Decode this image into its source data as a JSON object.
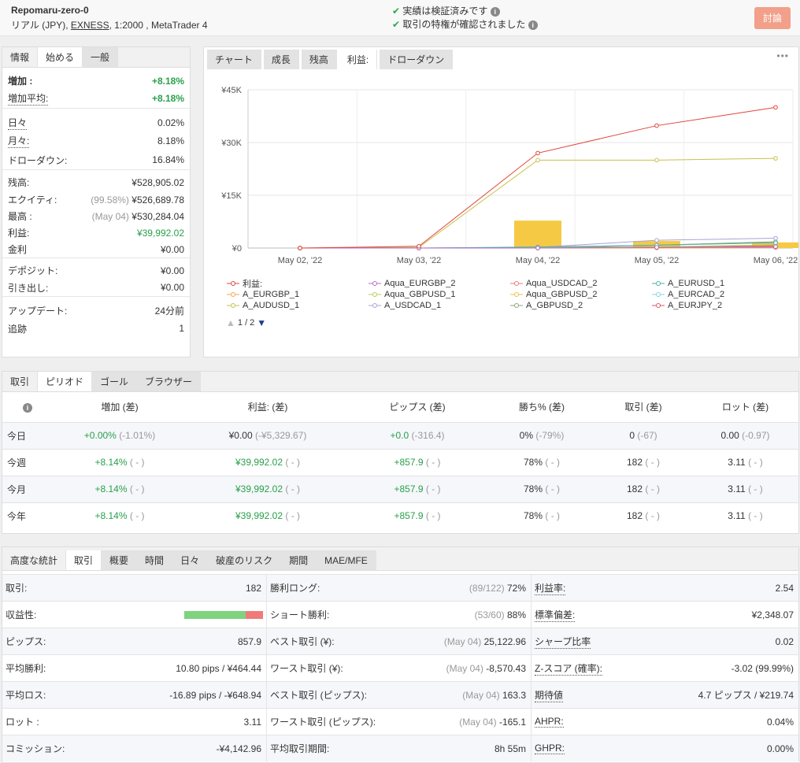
{
  "header": {
    "title": "Repomaru-zero-0",
    "subtitle_prefix": "リアル (JPY), ",
    "broker": "EXNESS",
    "subtitle_suffix": ", 1:2000 , MetaTrader 4",
    "verified_1": "実績は検証済みです",
    "verified_2": "取引の特権が確認されました",
    "discuss_button": "討論",
    "discuss_color": "#f2a08a"
  },
  "info": {
    "tabs": [
      "情報",
      "始める",
      "一般"
    ],
    "growth_label": "増加 :",
    "growth_value": "+8.18%",
    "avg_growth_label": "増加平均:",
    "avg_growth_value": "+8.18%",
    "daily_label": "日々",
    "daily_value": "0.02%",
    "monthly_label": "月々:",
    "monthly_value": "8.18%",
    "drawdown_label": "ドローダウン:",
    "drawdown_value": "16.84%",
    "balance_label": "残高:",
    "balance_value": "¥528,905.02",
    "equity_label": "エクイティ:",
    "equity_note": "(99.58%)",
    "equity_value": "¥526,689.78",
    "highest_label": "最高 :",
    "highest_note": "(May 04)",
    "highest_value": "¥530,284.04",
    "profit_label": "利益:",
    "profit_value": "¥39,992.02",
    "interest_label": "金利",
    "interest_value": "¥0.00",
    "deposit_label": "デポジット:",
    "deposit_value": "¥0.00",
    "withdraw_label": "引き出し:",
    "withdraw_value": "¥0.00",
    "updated_label": "アップデート:",
    "updated_value": "24分前",
    "tracking_label": "追跡",
    "tracking_value": "1"
  },
  "chart_tabs": [
    "チャート",
    "成長",
    "残高",
    "利益:",
    "ドローダウン"
  ],
  "chart_more": "•••",
  "chart_pager": "1 / 2",
  "chart_data": {
    "type": "line",
    "categories": [
      "May 02, '22",
      "May 03, '22",
      "May 04, '22",
      "May 05, '22",
      "May 06, '22"
    ],
    "y_ticks": [
      "¥45K",
      "¥30K",
      "¥15K",
      "¥0"
    ],
    "ylim": [
      0,
      45000
    ],
    "grid": true,
    "legend_position": "bottom",
    "bars": [
      0,
      0,
      7800,
      2000,
      1600
    ],
    "series": [
      {
        "name": "利益:",
        "color": "#e0443b",
        "values": [
          0,
          500,
          27000,
          34800,
          39992
        ]
      },
      {
        "name": "Aqua_EURGBP_2",
        "color": "#b06fc8",
        "values": [
          0,
          0,
          0,
          200,
          400
        ]
      },
      {
        "name": "Aqua_USDCAD_2",
        "color": "#e87a7a",
        "values": [
          0,
          0,
          0,
          100,
          200
        ]
      },
      {
        "name": "A_EURUSD_1",
        "color": "#4bb3a6",
        "values": [
          0,
          0,
          300,
          800,
          1500
        ]
      },
      {
        "name": "A_EURGBP_1",
        "color": "#f3a74e",
        "values": [
          0,
          0,
          0,
          0,
          100
        ]
      },
      {
        "name": "Aqua_GBPUSD_1",
        "color": "#b5cf58",
        "values": [
          0,
          0,
          100,
          300,
          900
        ]
      },
      {
        "name": "Aqua_GBPUSD_2",
        "color": "#e8c24a",
        "values": [
          0,
          0,
          0,
          100,
          300
        ]
      },
      {
        "name": "A_EURCAD_2",
        "color": "#8ad0e8",
        "values": [
          0,
          0,
          0,
          100,
          200
        ]
      },
      {
        "name": "A_AUDUSD_1",
        "color": "#c9c04a",
        "values": [
          0,
          200,
          25000,
          25000,
          25500
        ]
      },
      {
        "name": "A_USDCAD_1",
        "color": "#a7a3d6",
        "values": [
          0,
          0,
          200,
          2200,
          2800
        ]
      },
      {
        "name": "A_GBPUSD_2",
        "color": "#8ea37a",
        "values": [
          0,
          0,
          0,
          800,
          1800
        ]
      },
      {
        "name": "A_EURJPY_2",
        "color": "#d8556e",
        "values": [
          0,
          0,
          0,
          300,
          700
        ]
      }
    ]
  },
  "period": {
    "tabs": [
      "取引",
      "ピリオド",
      "ゴール",
      "ブラウザー"
    ],
    "headers": [
      "増加 (差)",
      "利益: (差)",
      "ピップス (差)",
      "勝ち% (差)",
      "取引 (差)",
      "ロット (差)"
    ],
    "rows": [
      {
        "label": "今日",
        "c": [
          [
            "+0.00%",
            "(-1.01%)"
          ],
          [
            "¥0.00",
            "(-¥5,329.67)"
          ],
          [
            "+0.0",
            "(-316.4)"
          ],
          [
            "0%",
            "(-79%)"
          ],
          [
            "0",
            "(-67)"
          ],
          [
            "0.00",
            "(-0.97)"
          ]
        ]
      },
      {
        "label": "今週",
        "c": [
          [
            "+8.14%",
            "( - )"
          ],
          [
            "¥39,992.02",
            "( - )"
          ],
          [
            "+857.9",
            "( - )"
          ],
          [
            "78%",
            "( - )"
          ],
          [
            "182",
            "( - )"
          ],
          [
            "3.11",
            "( - )"
          ]
        ]
      },
      {
        "label": "今月",
        "c": [
          [
            "+8.14%",
            "( - )"
          ],
          [
            "¥39,992.02",
            "( - )"
          ],
          [
            "+857.9",
            "( - )"
          ],
          [
            "78%",
            "( - )"
          ],
          [
            "182",
            "( - )"
          ],
          [
            "3.11",
            "( - )"
          ]
        ]
      },
      {
        "label": "今年",
        "c": [
          [
            "+8.14%",
            "( - )"
          ],
          [
            "¥39,992.02",
            "( - )"
          ],
          [
            "+857.9",
            "( - )"
          ],
          [
            "78%",
            "( - )"
          ],
          [
            "182",
            "( - )"
          ],
          [
            "3.11",
            "( - )"
          ]
        ]
      }
    ]
  },
  "stats": {
    "tabs": [
      "高度な統計",
      "取引",
      "概要",
      "時間",
      "日々",
      "破産のリスク",
      "期間",
      "MAE/MFE"
    ],
    "profitability_win_fraction": 0.78,
    "col1": [
      {
        "label": "取引:",
        "value": "182"
      },
      {
        "label": "収益性:",
        "value": ""
      },
      {
        "label": "ピップス:",
        "value": "857.9"
      },
      {
        "label": "平均勝利:",
        "value": "10.80 pips / ¥464.44"
      },
      {
        "label": "平均ロス:",
        "value": "-16.89 pips / -¥648.94"
      },
      {
        "label": "ロット :",
        "value": "3.11"
      },
      {
        "label": "コミッション:",
        "value": "-¥4,142.96"
      }
    ],
    "col2": [
      {
        "label": "勝利ロング:",
        "note": "(89/122)",
        "value": "72%"
      },
      {
        "label": "ショート勝利:",
        "note": "(53/60)",
        "value": "88%"
      },
      {
        "label": "ベスト取引 (¥):",
        "note": "(May 04)",
        "value": "25,122.96"
      },
      {
        "label": "ワースト取引 (¥):",
        "note": "(May 04)",
        "value": "-8,570.43"
      },
      {
        "label": "ベスト取引 (ピップス):",
        "note": "(May 04)",
        "value": "163.3"
      },
      {
        "label": "ワースト取引 (ピップス):",
        "note": "(May 04)",
        "value": "-165.1"
      },
      {
        "label": "平均取引期間:",
        "note": "",
        "value": "8h 55m"
      }
    ],
    "col3": [
      {
        "label": "利益率:",
        "value": "2.54"
      },
      {
        "label": "標準偏差:",
        "value": "¥2,348.07"
      },
      {
        "label": "シャープ比率",
        "value": "0.02"
      },
      {
        "label": "Z-スコア (確率):",
        "value": "-3.02 (99.99%)"
      },
      {
        "label": "期待値",
        "value": "4.7 ピップス / ¥219.74"
      },
      {
        "label": "AHPR:",
        "value": "0.04%"
      },
      {
        "label": "GHPR:",
        "value": "0.00%"
      }
    ]
  }
}
